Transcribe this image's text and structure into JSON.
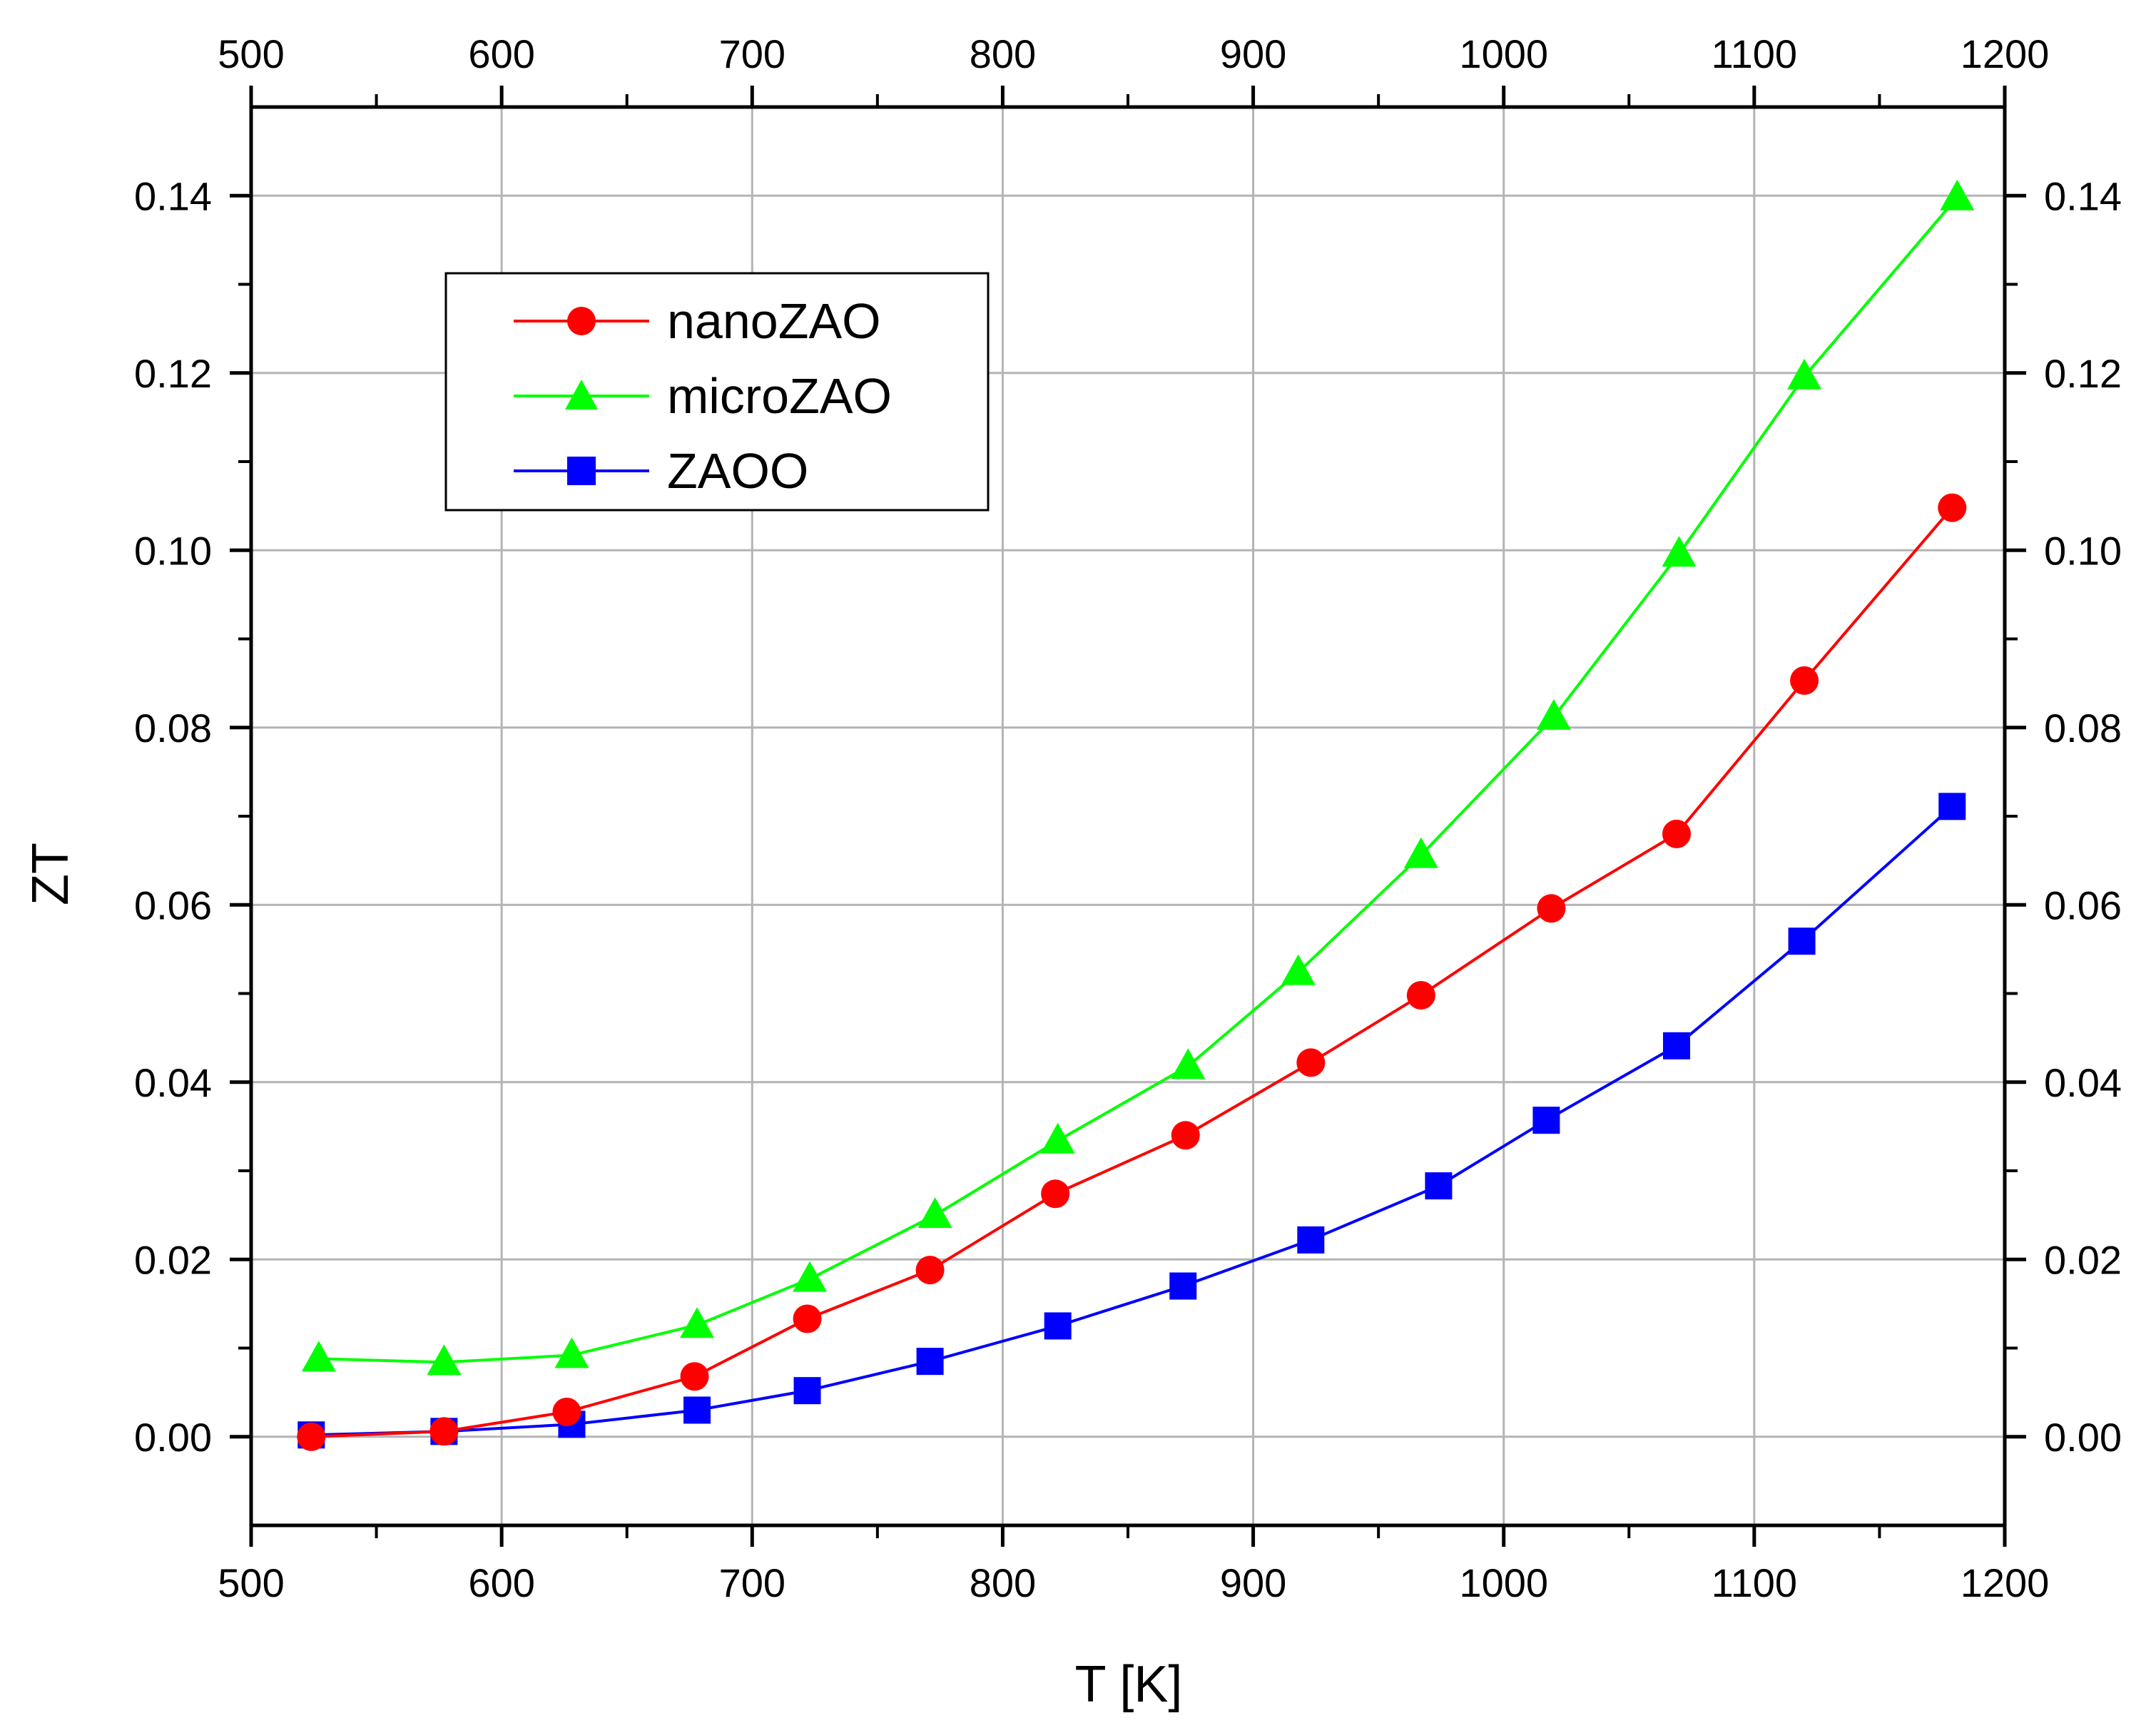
{
  "chart_data": {
    "type": "line",
    "xlabel": "T [K]",
    "ylabel": "ZT",
    "xlim": [
      500,
      1200
    ],
    "ylim": [
      -0.01,
      0.15
    ],
    "x_ticks": [
      500,
      600,
      700,
      800,
      900,
      1000,
      1100,
      1200
    ],
    "x_tick_labels": [
      "500",
      "600",
      "700",
      "800",
      "900",
      "1000",
      "1100",
      "1200"
    ],
    "y_ticks": [
      0.0,
      0.02,
      0.04,
      0.06,
      0.08,
      0.1,
      0.12,
      0.14
    ],
    "y_tick_labels": [
      "0.00",
      "0.02",
      "0.04",
      "0.06",
      "0.08",
      "0.10",
      "0.12",
      "0.14"
    ],
    "grid": true,
    "legend_position": "top-left",
    "series": [
      {
        "name": "nanoZAO",
        "color": "#ff0000",
        "marker": "circle",
        "x": [
          524,
          577,
          626,
          677,
          722,
          771,
          821,
          873,
          923,
          967,
          1019,
          1069,
          1120,
          1179
        ],
        "y": [
          0.0,
          0.0006,
          0.0028,
          0.0068,
          0.0133,
          0.0188,
          0.0274,
          0.034,
          0.0422,
          0.0498,
          0.0596,
          0.068,
          0.0853,
          0.1048
        ]
      },
      {
        "name": "microZAO",
        "color": "#00ff00",
        "marker": "triangle",
        "x": [
          527,
          577,
          628,
          678,
          723,
          773,
          822,
          874,
          918,
          967,
          1020,
          1070,
          1120,
          1181
        ],
        "y": [
          0.0088,
          0.0084,
          0.0092,
          0.0126,
          0.0178,
          0.025,
          0.0334,
          0.0418,
          0.0524,
          0.0656,
          0.0812,
          0.0996,
          0.1196,
          0.1398
        ]
      },
      {
        "name": "ZAOO",
        "color": "#0000ff",
        "marker": "square",
        "x": [
          524,
          577,
          628,
          678,
          722,
          771,
          822,
          872,
          923,
          974,
          1017,
          1069,
          1119,
          1179
        ],
        "y": [
          0.0002,
          0.0006,
          0.0014,
          0.003,
          0.0052,
          0.0085,
          0.0125,
          0.017,
          0.0222,
          0.0283,
          0.0357,
          0.0441,
          0.0559,
          0.0711
        ]
      }
    ]
  }
}
